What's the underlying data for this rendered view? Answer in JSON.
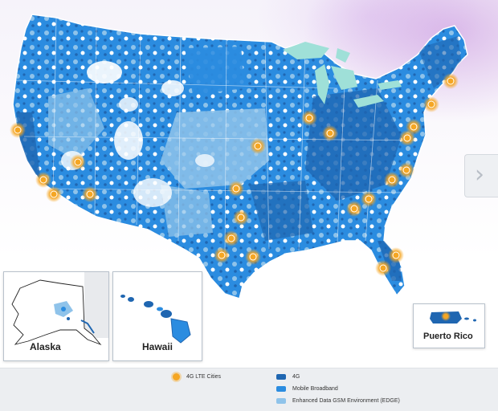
{
  "colors": {
    "lte": "#f5a623",
    "g4": "#1f66b1",
    "mobile_broadband": "#2b8ce0",
    "edge": "#8fc3ea",
    "lakes": "#9fe0d8"
  },
  "insets": {
    "alaska": "Alaska",
    "hawaii": "Hawaii",
    "puerto_rico": "Puerto Rico"
  },
  "legend": {
    "lte": "4G LTE Cities",
    "g4": "4G",
    "mobile_broadband": "Mobile Broadband",
    "edge": "Enhanced Data GSM Environment (EDGE)"
  },
  "navigation": {
    "next_icon": "chevron-right-icon",
    "next_glyph": "›"
  }
}
